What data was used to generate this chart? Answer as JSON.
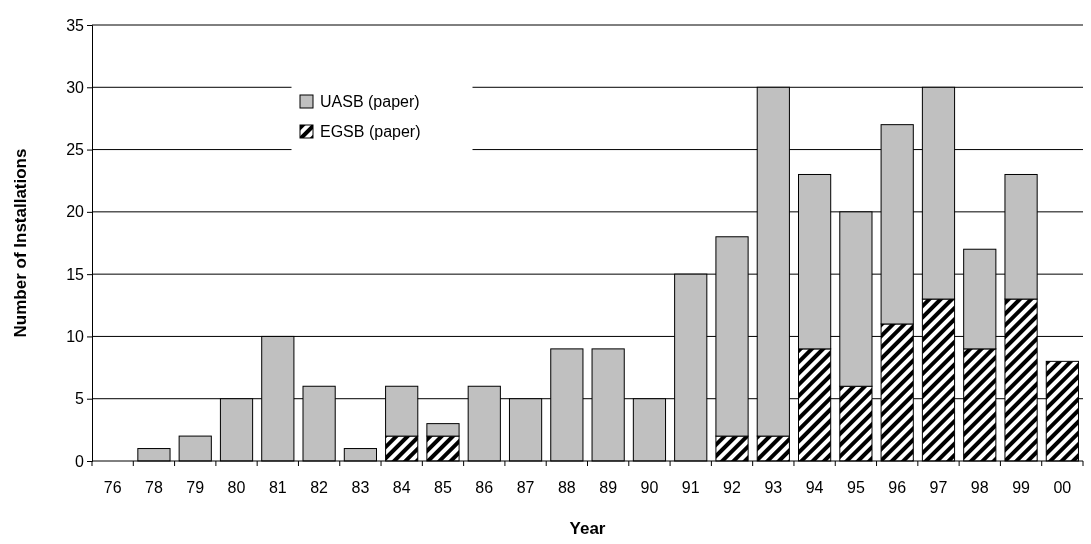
{
  "chart_data": {
    "type": "bar",
    "stacked": true,
    "xlabel": "Year",
    "ylabel": "Number of Installations",
    "categories": [
      "76",
      "78",
      "79",
      "80",
      "81",
      "82",
      "83",
      "84",
      "85",
      "86",
      "87",
      "88",
      "89",
      "90",
      "91",
      "92",
      "93",
      "94",
      "95",
      "96",
      "97",
      "98",
      "99",
      "00"
    ],
    "series": [
      {
        "name": "EGSB (paper)",
        "color": "#000000",
        "values": [
          0,
          0,
          0,
          0,
          0,
          0,
          0,
          2,
          2,
          0,
          0,
          0,
          0,
          0,
          0,
          2,
          2,
          9,
          6,
          11,
          13,
          9,
          13,
          8
        ]
      },
      {
        "name": "UASB (paper)",
        "color": "#c0c0c0",
        "values": [
          0,
          1,
          2,
          5,
          10,
          6,
          1,
          4,
          1,
          6,
          5,
          9,
          9,
          5,
          15,
          16,
          28,
          14,
          14,
          16,
          17,
          8,
          10,
          0
        ]
      }
    ],
    "ylim": [
      0,
      35
    ],
    "yticks": [
      0,
      5,
      10,
      15,
      20,
      25,
      30,
      35
    ],
    "grid": "y",
    "legend": "top left"
  }
}
